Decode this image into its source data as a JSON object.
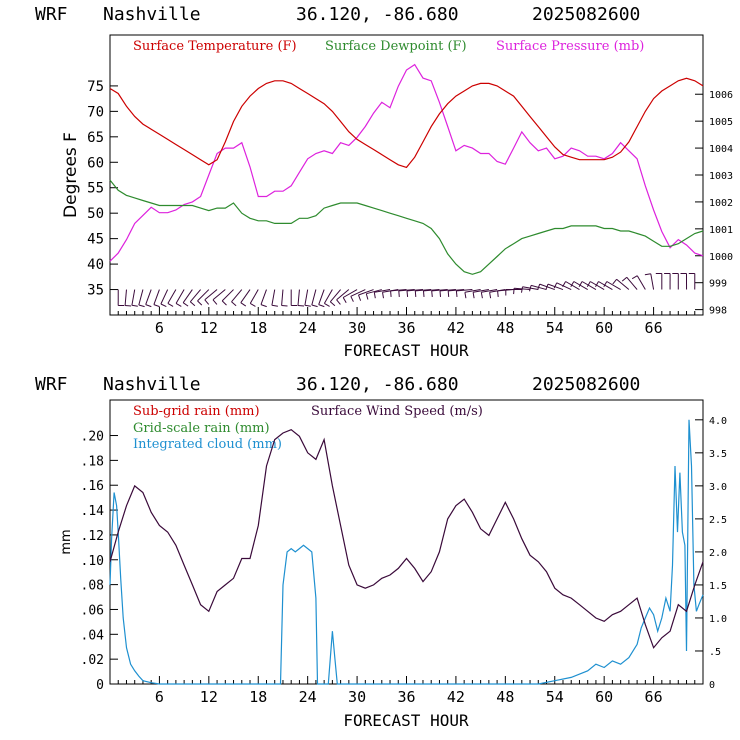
{
  "colors": {
    "temperature": "#cc0000",
    "dewpoint": "#2e8b2e",
    "pressure": "#dd22dd",
    "subgrid_rain": "#cc0000",
    "gridscale_rain": "#2e8b2e",
    "cloud": "#1e90d0",
    "wind_speed": "#3a0a3a",
    "wind_barbs": "#3a0a3a",
    "axis": "#000000"
  },
  "chart_data": [
    {
      "type": "line",
      "header": {
        "model": "WRF",
        "location": "Nashville",
        "coords": "36.120, -86.680",
        "init": "2025082600"
      },
      "legend": [
        "Surface Temperature (F)",
        "Surface Dewpoint (F)",
        "Surface Pressure (mb)"
      ],
      "xlabel": "FORECAST HOUR",
      "ylabel": "Degrees F",
      "xlim": [
        0,
        72
      ],
      "ylim": [
        30,
        85
      ],
      "y2lim": [
        997.8,
        1008.2
      ],
      "xticks": [
        "6",
        "12",
        "18",
        "24",
        "30",
        "36",
        "42",
        "48",
        "54",
        "60",
        "66"
      ],
      "yticks": [
        "35",
        "40",
        "45",
        "50",
        "55",
        "60",
        "65",
        "70",
        "75"
      ],
      "y2ticks": [
        "998",
        "999",
        "1000",
        "1001",
        "1002",
        "1003",
        "1004",
        "1005",
        "1006"
      ],
      "series": [
        {
          "name": "Surface Temperature (F)",
          "axis": "left",
          "x": [
            0,
            1,
            2,
            3,
            4,
            5,
            6,
            7,
            8,
            9,
            10,
            11,
            12,
            13,
            14,
            15,
            16,
            17,
            18,
            19,
            20,
            21,
            22,
            23,
            24,
            25,
            26,
            27,
            28,
            29,
            30,
            31,
            32,
            33,
            34,
            35,
            36,
            37,
            38,
            39,
            40,
            41,
            42,
            43,
            44,
            45,
            46,
            47,
            48,
            49,
            50,
            51,
            52,
            53,
            54,
            55,
            56,
            57,
            58,
            59,
            60,
            61,
            62,
            63,
            64,
            65,
            66,
            67,
            68,
            69,
            70,
            71,
            72
          ],
          "values": [
            74.5,
            73.5,
            71,
            69,
            67.5,
            66.5,
            65.5,
            64.5,
            63.5,
            62.5,
            61.5,
            60.5,
            59.5,
            60.5,
            64,
            68,
            71,
            73,
            74.5,
            75.5,
            76,
            76,
            75.5,
            74.5,
            73.5,
            72.5,
            71.5,
            70,
            68,
            66,
            64.5,
            63.5,
            62.5,
            61.5,
            60.5,
            59.5,
            59,
            61,
            64,
            67,
            69.5,
            71.5,
            73,
            74,
            75,
            75.5,
            75.5,
            75,
            74,
            73,
            71,
            69,
            67,
            65,
            63,
            61.5,
            61,
            60.5,
            60.5,
            60.5,
            60.5,
            61,
            62,
            64,
            67,
            70,
            72.5,
            74,
            75,
            76,
            76.5,
            76,
            75
          ]
        },
        {
          "name": "Surface Dewpoint (F)",
          "axis": "left",
          "x": [
            0,
            1,
            2,
            3,
            4,
            5,
            6,
            7,
            8,
            9,
            10,
            11,
            12,
            13,
            14,
            15,
            16,
            17,
            18,
            19,
            20,
            21,
            22,
            23,
            24,
            25,
            26,
            27,
            28,
            29,
            30,
            31,
            32,
            33,
            34,
            35,
            36,
            37,
            38,
            39,
            40,
            41,
            42,
            43,
            44,
            45,
            46,
            47,
            48,
            49,
            50,
            51,
            52,
            53,
            54,
            55,
            56,
            57,
            58,
            59,
            60,
            61,
            62,
            63,
            64,
            65,
            66,
            67,
            68,
            69,
            70,
            71,
            72
          ],
          "values": [
            56.5,
            54.5,
            53.5,
            53,
            52.5,
            52,
            51.5,
            51.5,
            51.5,
            51.5,
            51.5,
            51,
            50.5,
            51,
            51,
            52,
            50,
            49,
            48.5,
            48.5,
            48,
            48,
            48,
            49,
            49,
            49.5,
            51,
            51.5,
            52,
            52,
            52,
            51.5,
            51,
            50.5,
            50,
            49.5,
            49,
            48.5,
            48,
            47,
            45,
            42,
            40,
            38.5,
            38,
            38.5,
            40,
            41.5,
            43,
            44,
            45,
            45.5,
            46,
            46.5,
            47,
            47,
            47.5,
            47.5,
            47.5,
            47.5,
            47,
            47,
            46.5,
            46.5,
            46,
            45.5,
            44.5,
            43.5,
            43.5,
            44,
            45,
            46,
            46.5
          ]
        },
        {
          "name": "Surface Pressure (mb)",
          "axis": "right",
          "x": [
            0,
            1,
            2,
            3,
            4,
            5,
            6,
            7,
            8,
            9,
            10,
            11,
            12,
            13,
            14,
            15,
            16,
            17,
            18,
            19,
            20,
            21,
            22,
            23,
            24,
            25,
            26,
            27,
            28,
            29,
            30,
            31,
            32,
            33,
            34,
            35,
            36,
            37,
            38,
            39,
            40,
            41,
            42,
            43,
            44,
            45,
            46,
            47,
            48,
            49,
            50,
            51,
            52,
            53,
            54,
            55,
            56,
            57,
            58,
            59,
            60,
            61,
            62,
            63,
            64,
            65,
            66,
            67,
            68,
            69,
            70,
            71,
            72
          ],
          "values": [
            999.8,
            1000.1,
            1000.6,
            1001.2,
            1001.5,
            1001.8,
            1001.6,
            1001.6,
            1001.7,
            1001.9,
            1002.0,
            1002.2,
            1003.0,
            1003.8,
            1004.0,
            1004.0,
            1004.2,
            1003.3,
            1002.2,
            1002.2,
            1002.4,
            1002.4,
            1002.6,
            1003.1,
            1003.6,
            1003.8,
            1003.9,
            1003.8,
            1004.2,
            1004.1,
            1004.4,
            1004.8,
            1005.3,
            1005.7,
            1005.5,
            1006.3,
            1006.9,
            1007.1,
            1006.6,
            1006.5,
            1005.7,
            1004.8,
            1003.9,
            1004.1,
            1004.0,
            1003.8,
            1003.8,
            1003.5,
            1003.4,
            1004.0,
            1004.6,
            1004.2,
            1003.9,
            1004.0,
            1003.6,
            1003.7,
            1004.0,
            1003.9,
            1003.7,
            1003.7,
            1003.6,
            1003.8,
            1004.2,
            1003.9,
            1003.6,
            1002.6,
            1001.7,
            1000.9,
            1000.3,
            1000.6,
            1000.4,
            1000.1,
            1000.0
          ]
        }
      ],
      "wind_barbs": {
        "label": "Surface wind barbs along y = 35",
        "x": [
          0,
          1,
          2,
          3,
          4,
          5,
          6,
          7,
          8,
          9,
          10,
          11,
          12,
          13,
          14,
          15,
          16,
          17,
          18,
          19,
          20,
          21,
          22,
          23,
          24,
          25,
          26,
          27,
          28,
          29,
          30,
          31,
          32,
          33,
          34,
          35,
          36,
          37,
          38,
          39,
          40,
          41,
          42,
          43,
          44,
          45,
          46,
          47,
          48,
          49,
          50,
          51,
          52,
          53,
          54,
          55,
          56,
          57,
          58,
          59,
          60,
          61,
          62,
          63,
          64,
          65,
          66,
          67,
          68,
          69,
          70,
          71,
          72
        ],
        "direction_deg": [
          180,
          180,
          185,
          190,
          195,
          200,
          200,
          205,
          210,
          210,
          215,
          220,
          225,
          230,
          230,
          225,
          220,
          215,
          210,
          200,
          190,
          185,
          180,
          185,
          190,
          195,
          200,
          210,
          220,
          230,
          240,
          245,
          250,
          255,
          260,
          260,
          265,
          265,
          265,
          265,
          265,
          265,
          265,
          265,
          265,
          260,
          260,
          260,
          260,
          265,
          270,
          275,
          280,
          285,
          290,
          290,
          295,
          300,
          300,
          300,
          300,
          300,
          300,
          310,
          320,
          330,
          350,
          360,
          360,
          360,
          360,
          360,
          360
        ]
      }
    },
    {
      "type": "line",
      "header": {
        "model": "WRF",
        "location": "Nashville",
        "coords": "36.120, -86.680",
        "init": "2025082600"
      },
      "legend": [
        "Sub-grid rain (mm)",
        "Grid-scale rain (mm)",
        "Integrated cloud (mm)",
        "Surface Wind Speed (m/s)"
      ],
      "xlabel": "FORECAST HOUR",
      "ylabel": "mm",
      "xlim": [
        0,
        72
      ],
      "ylim": [
        0,
        0.2286
      ],
      "y2lim": [
        0,
        4.3
      ],
      "xticks": [
        "6",
        "12",
        "18",
        "24",
        "30",
        "36",
        "42",
        "48",
        "54",
        "60",
        "66"
      ],
      "yticks": [
        "0",
        ".02",
        ".04",
        ".06",
        ".08",
        ".10",
        ".12",
        ".14",
        ".16",
        ".18",
        ".20"
      ],
      "y2ticks": [
        "0",
        ".5",
        "1.0",
        "1.5",
        "2.0",
        "2.5",
        "3.0",
        "3.5",
        "4.0"
      ],
      "series": [
        {
          "name": "Surface Wind Speed (m/s)",
          "axis": "right",
          "x": [
            0,
            1,
            2,
            3,
            4,
            5,
            6,
            7,
            8,
            9,
            10,
            11,
            12,
            13,
            14,
            15,
            16,
            17,
            18,
            19,
            20,
            21,
            22,
            23,
            24,
            25,
            26,
            27,
            28,
            29,
            30,
            31,
            32,
            33,
            34,
            35,
            36,
            37,
            38,
            39,
            40,
            41,
            42,
            43,
            44,
            45,
            46,
            47,
            48,
            49,
            50,
            51,
            52,
            53,
            54,
            55,
            56,
            57,
            58,
            59,
            60,
            61,
            62,
            63,
            64,
            65,
            66,
            67,
            68,
            69,
            70,
            71,
            72
          ],
          "values": [
            1.85,
            2.3,
            2.7,
            3.0,
            2.9,
            2.6,
            2.4,
            2.3,
            2.1,
            1.8,
            1.5,
            1.2,
            1.1,
            1.4,
            1.5,
            1.6,
            1.9,
            1.9,
            2.4,
            3.3,
            3.7,
            3.8,
            3.85,
            3.75,
            3.5,
            3.4,
            3.7,
            3.0,
            2.4,
            1.8,
            1.5,
            1.45,
            1.5,
            1.6,
            1.65,
            1.75,
            1.9,
            1.75,
            1.55,
            1.7,
            2.0,
            2.5,
            2.7,
            2.8,
            2.6,
            2.35,
            2.25,
            2.5,
            2.75,
            2.5,
            2.2,
            1.95,
            1.85,
            1.7,
            1.45,
            1.35,
            1.3,
            1.2,
            1.1,
            1.0,
            0.95,
            1.05,
            1.1,
            1.2,
            1.3,
            0.9,
            0.55,
            0.7,
            0.8,
            1.2,
            1.1,
            1.5,
            1.85
          ]
        },
        {
          "name": "Integrated cloud (mm)",
          "axis": "right",
          "x": [
            0,
            0.2,
            0.5,
            0.8,
            1.0,
            1.3,
            1.6,
            2.0,
            2.5,
            3.0,
            3.5,
            4.0,
            5.0,
            6.0,
            10.0,
            20.0,
            20.7,
            21.0,
            21.5,
            22.0,
            22.5,
            23.0,
            23.5,
            24.0,
            24.5,
            25.0,
            25.2,
            25.5,
            25.8,
            26.0,
            26.5,
            27.0,
            27.3,
            27.6,
            27.9,
            28.2,
            28.5,
            30.0,
            40.0,
            50.0,
            52.0,
            54.0,
            56.0,
            58.0,
            59.0,
            60.0,
            61.0,
            62.0,
            63.0,
            64.0,
            64.5,
            65.0,
            65.5,
            66.0,
            66.5,
            67.0,
            67.5,
            68.0,
            68.3,
            68.6,
            68.9,
            69.2,
            69.5,
            69.8,
            70.0,
            70.3,
            70.6,
            70.9,
            71.2,
            71.5,
            72.0
          ],
          "values": [
            1.5,
            2.2,
            2.9,
            2.7,
            2.3,
            1.6,
            1.0,
            0.55,
            0.3,
            0.2,
            0.12,
            0.05,
            0.02,
            0.0,
            0.0,
            0.0,
            0.0,
            1.5,
            2.0,
            2.05,
            2.0,
            2.05,
            2.1,
            2.05,
            2.0,
            1.3,
            0.0,
            0.0,
            0.0,
            0.0,
            0.0,
            0.8,
            0.4,
            0.0,
            0.0,
            0.0,
            0.0,
            0.0,
            0.0,
            0.0,
            0.0,
            0.05,
            0.1,
            0.2,
            0.3,
            0.25,
            0.35,
            0.3,
            0.4,
            0.6,
            0.85,
            1.0,
            1.15,
            1.05,
            0.8,
            1.0,
            1.3,
            1.1,
            1.8,
            3.3,
            2.3,
            3.2,
            2.3,
            2.1,
            0.5,
            4.0,
            3.3,
            1.5,
            1.1,
            1.2,
            1.35
          ]
        }
      ]
    }
  ]
}
